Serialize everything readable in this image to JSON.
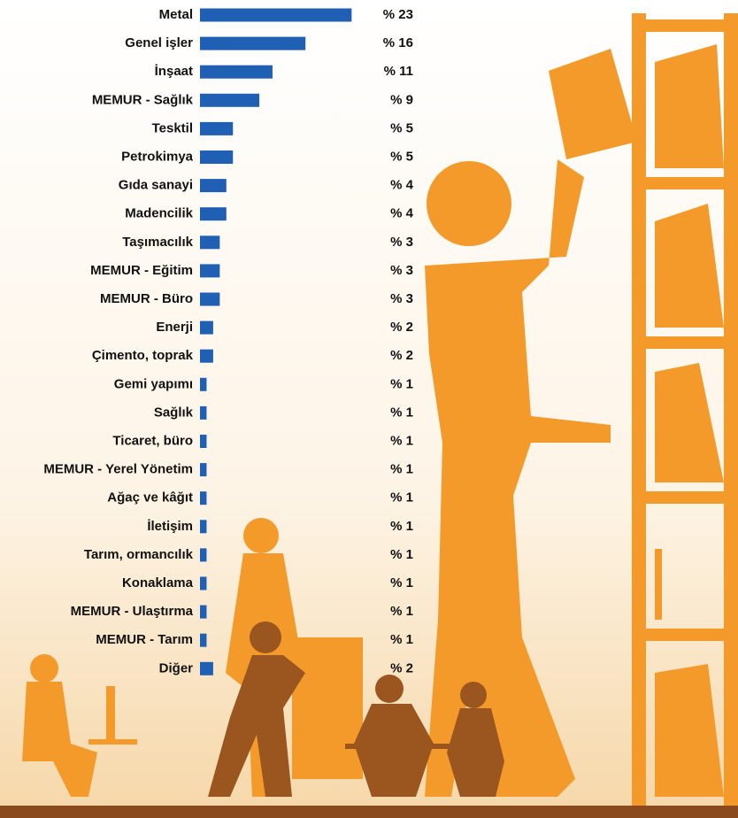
{
  "chart_data": {
    "type": "bar",
    "orientation": "horizontal",
    "color": "#1f5fb4",
    "categories": [
      "Metal",
      "Genel işler",
      "İnşaat",
      "MEMUR - Sağlık",
      "Tesktil",
      "Petrokimya",
      "Gıda sanayi",
      "Madencilik",
      "Taşımacılık",
      "MEMUR - Eğitim",
      "MEMUR - Büro",
      "Enerji",
      "Çimento, toprak",
      "Gemi yapımı",
      "Sağlık",
      "Ticaret, büro",
      "MEMUR - Yerel Yönetim",
      "Ağaç ve kâğıt",
      "İletişim",
      "Tarım, ormancılık",
      "Konaklama",
      "MEMUR - Ulaştırma",
      "MEMUR - Tarım",
      "Diğer"
    ],
    "values": [
      23,
      16,
      11,
      9,
      5,
      5,
      4,
      4,
      3,
      3,
      3,
      2,
      2,
      1,
      1,
      1,
      1,
      1,
      1,
      1,
      1,
      1,
      1,
      2
    ],
    "value_labels": [
      "% 23",
      "% 16",
      "% 11",
      "% 9",
      "% 5",
      "% 5",
      "% 4",
      "% 4",
      "% 3",
      "% 3",
      "% 3",
      "% 2",
      "% 2",
      "% 1",
      "% 1",
      "% 1",
      "% 1",
      "% 1",
      "% 1",
      "% 1",
      "% 1",
      "% 1",
      "% 1",
      "% 2"
    ]
  }
}
